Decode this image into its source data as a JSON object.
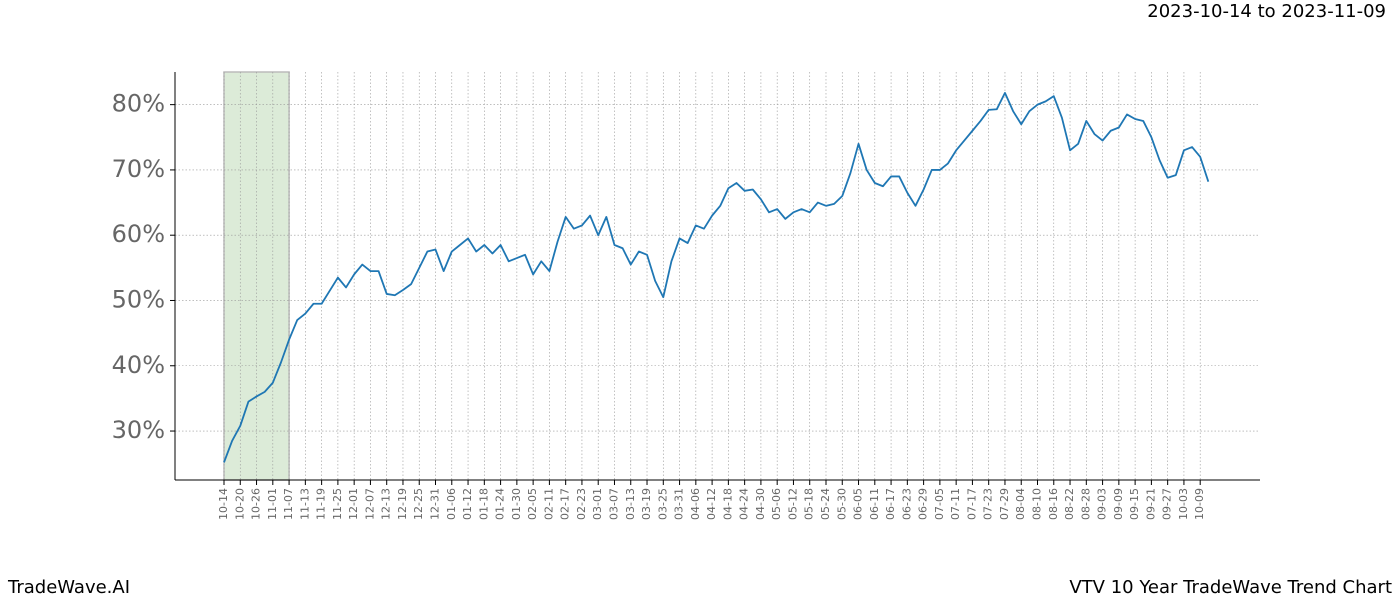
{
  "chart_data": {
    "type": "line",
    "range_label": "2023-10-14 to 2023-11-09",
    "brand": "TradeWave.AI",
    "title": "VTV 10 Year TradeWave Trend Chart",
    "categories": [
      "10-14",
      null,
      "10-20",
      null,
      "10-26",
      null,
      "11-01",
      null,
      "11-07",
      null,
      "11-13",
      null,
      "11-19",
      null,
      "11-25",
      null,
      "12-01",
      null,
      "12-07",
      null,
      "12-13",
      null,
      "12-19",
      null,
      "12-25",
      null,
      "12-31",
      null,
      "01-06",
      null,
      "01-12",
      null,
      "01-18",
      null,
      "01-24",
      null,
      "01-30",
      null,
      "02-05",
      null,
      "02-11",
      null,
      "02-17",
      null,
      "02-23",
      null,
      "03-01",
      null,
      "03-07",
      null,
      "03-13",
      null,
      "03-19",
      null,
      "03-25",
      null,
      "03-31",
      null,
      "04-06",
      null,
      "04-12",
      null,
      "04-18",
      null,
      "04-24",
      null,
      "04-30",
      null,
      "05-06",
      null,
      "05-12",
      null,
      "05-18",
      null,
      "05-24",
      null,
      "05-30",
      null,
      "06-05",
      null,
      "06-11",
      null,
      "06-17",
      null,
      "06-23",
      null,
      "06-29",
      null,
      "07-05",
      null,
      "07-11",
      null,
      "07-17",
      null,
      "07-23",
      null,
      "07-29",
      null,
      "08-04",
      null,
      "08-10",
      null,
      "08-16",
      null,
      "08-22",
      null,
      "08-28",
      null,
      "09-03",
      null,
      "09-09",
      null,
      "09-15",
      null,
      "09-21",
      null,
      "09-27",
      null,
      "10-03",
      null,
      "10-09",
      null
    ],
    "series": [
      {
        "color": "#1f77b4",
        "values": [
          25.2,
          28.5,
          30.8,
          34.5,
          35.3,
          36,
          37.4,
          40.5,
          44,
          47,
          48,
          49.5,
          49.5,
          51.5,
          53.5,
          52,
          54,
          55.5,
          54.5,
          54.5,
          51,
          50.8,
          51.6,
          52.5,
          55,
          57.5,
          57.8,
          54.5,
          57.5,
          58.5,
          59.5,
          57.5,
          58.5,
          57.2,
          58.5,
          56,
          56.5,
          57,
          54,
          56,
          54.5,
          59,
          62.8,
          61,
          61.5,
          63,
          60,
          62.8,
          58.5,
          58,
          55.5,
          57.5,
          57,
          53,
          50.5,
          56,
          59.5,
          58.8,
          61.5,
          61,
          63,
          64.5,
          67.2,
          68,
          66.8,
          67,
          65.5,
          63.5,
          64,
          62.5,
          63.5,
          64,
          63.5,
          65,
          64.5,
          64.8,
          66,
          69.5,
          74,
          70,
          68,
          67.5,
          69,
          69,
          66.5,
          64.5,
          67,
          70,
          70,
          71,
          73,
          74.5,
          76,
          77.5,
          79.2,
          79.3,
          81.8,
          79,
          77,
          79,
          80,
          80.5,
          81.3,
          78,
          73,
          74,
          77.5,
          75.5,
          74.5,
          76,
          76.5,
          78.5,
          77.8,
          77.5,
          75,
          71.5,
          68.8,
          69.2,
          73,
          73.5,
          72,
          68.2
        ]
      }
    ],
    "highlight": {
      "start": "10-14",
      "end": "11-07",
      "color": "#dcebd8"
    },
    "ylim": [
      22.5,
      85
    ],
    "yticks": [
      {
        "value": 30,
        "label": "30%"
      },
      {
        "value": 40,
        "label": "40%"
      },
      {
        "value": 50,
        "label": "50%"
      },
      {
        "value": 60,
        "label": "60%"
      },
      {
        "value": 70,
        "label": "70%"
      },
      {
        "value": 80,
        "label": "80%"
      }
    ],
    "grid": true
  }
}
